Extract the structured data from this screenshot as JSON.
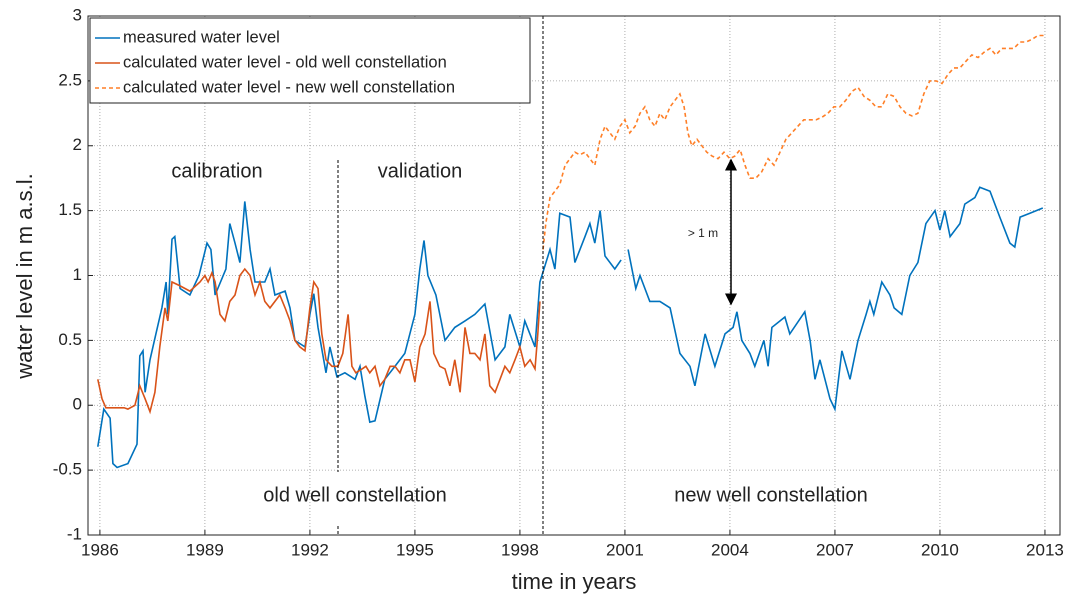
{
  "chart_data": {
    "type": "line",
    "x_label": "time in years",
    "y_label": "water level in m a.s.l.",
    "xlim": [
      1985.66,
      2013.43
    ],
    "ylim": [
      -1,
      3
    ],
    "xticks": [
      1986,
      1989,
      1992,
      1995,
      1998,
      2001,
      2004,
      2007,
      2010,
      2013
    ],
    "yticks": [
      -1,
      -0.5,
      0,
      0.5,
      1,
      1.5,
      2,
      2.5,
      3
    ],
    "grid": true,
    "legend": "upper left",
    "annotations": [
      "calibration",
      "validation",
      "old well constellation",
      "new well constellation",
      "> 1 m"
    ],
    "series": [
      {
        "name": "measured water level",
        "color": "#0072bd",
        "line_style": "solid",
        "x": [
          1985.94,
          1986.11,
          1986.29,
          1986.37,
          1986.49,
          1986.8,
          1987.06,
          1987.14,
          1987.23,
          1987.29,
          1987.43,
          1987.6,
          1987.77,
          1987.89,
          1987.94,
          1988.06,
          1988.14,
          1988.29,
          1988.57,
          1988.83,
          1989.06,
          1989.17,
          1989.29,
          1989.6,
          1989.71,
          1989.86,
          1990.0,
          1990.14,
          1990.29,
          1990.43,
          1990.71,
          1990.86,
          1991.0,
          1991.29,
          1991.43,
          1991.57,
          1991.86,
          1992.0,
          1992.11,
          1992.23,
          1992.46,
          1992.57,
          1992.77,
          1993.0,
          1993.29,
          1993.43,
          1993.57,
          1993.71,
          1993.86,
          1994.14,
          1994.43,
          1994.71,
          1995.0,
          1995.14,
          1995.26,
          1995.37,
          1995.6,
          1995.86,
          1996.14,
          1996.43,
          1996.71,
          1997.0,
          1997.29,
          1997.57,
          1997.71,
          1998.0,
          1998.14,
          1998.43,
          1998.57,
          1998.86,
          1999.0,
          1999.14,
          1999.43,
          1999.57,
          1999.86,
          2000.0,
          2000.14,
          2000.29,
          2000.43,
          2000.71,
          2000.89,
          null,
          2001.09,
          2001.31,
          2001.43,
          2001.71,
          2002.0,
          2002.29,
          2002.57,
          2002.86,
          2003.0,
          2003.29,
          2003.57,
          2003.86,
          2004.09,
          2004.2,
          2004.34,
          2004.57,
          2004.71,
          2004.97,
          2005.09,
          2005.2,
          2005.57,
          2005.71,
          2006.14,
          2006.29,
          2006.43,
          2006.57,
          2006.86,
          2007.0,
          2007.2,
          2007.43,
          2007.66,
          2007.89,
          2008.0,
          2008.11,
          2008.34,
          2008.57,
          2008.69,
          2008.91,
          2009.14,
          2009.37,
          2009.6,
          2009.86,
          2010.0,
          2010.14,
          2010.29,
          2010.57,
          2010.71,
          2011.0,
          2011.14,
          2011.43,
          2011.71,
          2012.0,
          2012.14,
          2012.29,
          2012.57,
          2012.94
        ],
        "values": [
          -0.32,
          -0.03,
          -0.1,
          -0.45,
          -0.48,
          -0.45,
          -0.3,
          0.38,
          0.42,
          0.1,
          0.35,
          0.55,
          0.75,
          0.95,
          0.7,
          1.28,
          1.3,
          0.9,
          0.85,
          1.0,
          1.25,
          1.2,
          0.85,
          1.05,
          1.4,
          1.25,
          1.1,
          1.57,
          1.2,
          0.95,
          0.95,
          1.05,
          0.85,
          0.88,
          0.75,
          0.5,
          0.45,
          0.7,
          0.86,
          0.6,
          0.25,
          0.45,
          0.22,
          0.25,
          0.2,
          0.3,
          0.07,
          -0.13,
          -0.12,
          0.2,
          0.3,
          0.4,
          0.7,
          1.05,
          1.27,
          1.0,
          0.85,
          0.5,
          0.6,
          0.65,
          0.7,
          0.78,
          0.35,
          0.45,
          0.7,
          0.45,
          0.65,
          0.45,
          0.95,
          1.2,
          1.05,
          1.48,
          1.45,
          1.1,
          1.3,
          1.4,
          1.25,
          1.5,
          1.15,
          1.05,
          1.12,
          null,
          1.2,
          0.9,
          1.0,
          0.8,
          0.8,
          0.75,
          0.4,
          0.3,
          0.15,
          0.55,
          0.3,
          0.55,
          0.6,
          0.72,
          0.5,
          0.4,
          0.3,
          0.5,
          0.3,
          0.6,
          0.68,
          0.55,
          0.72,
          0.5,
          0.2,
          0.35,
          0.05,
          -0.03,
          0.42,
          0.2,
          0.5,
          0.7,
          0.8,
          0.7,
          0.95,
          0.85,
          0.75,
          0.7,
          1.0,
          1.1,
          1.4,
          1.5,
          1.35,
          1.5,
          1.3,
          1.4,
          1.55,
          1.6,
          1.68,
          1.65,
          1.45,
          1.25,
          1.22,
          1.45,
          1.48,
          1.52
        ]
      },
      {
        "name": "calculated water level - old well constellation",
        "color": "#d95319",
        "line_style": "solid",
        "x": [
          1985.94,
          1986.06,
          1986.17,
          1986.34,
          1986.51,
          1986.69,
          1986.8,
          1987.0,
          1987.14,
          1987.29,
          1987.43,
          1987.57,
          1987.71,
          1987.86,
          1987.94,
          1988.06,
          1988.29,
          1988.57,
          1988.86,
          1989.0,
          1989.09,
          1989.2,
          1989.29,
          1989.43,
          1989.57,
          1989.71,
          1989.86,
          1990.0,
          1990.14,
          1990.29,
          1990.43,
          1990.57,
          1990.71,
          1990.86,
          1991.14,
          1991.29,
          1991.43,
          1991.57,
          1991.71,
          1991.86,
          1992.0,
          1992.11,
          1992.23,
          1992.34,
          1992.46,
          1992.63,
          1992.8,
          1992.94,
          1993.09,
          1993.2,
          1993.31,
          1993.49,
          1993.6,
          1993.71,
          1993.86,
          1994.0,
          1994.14,
          1994.29,
          1994.43,
          1994.57,
          1994.71,
          1994.86,
          1995.0,
          1995.14,
          1995.29,
          1995.43,
          1995.54,
          1995.71,
          1995.86,
          1996.0,
          1996.14,
          1996.29,
          1996.43,
          1996.57,
          1996.71,
          1996.86,
          1997.0,
          1997.14,
          1997.29,
          1997.43,
          1997.57,
          1997.71,
          1997.86,
          1998.0,
          1998.14,
          1998.29,
          1998.43,
          1998.51,
          1998.57
        ],
        "values": [
          0.2,
          0.05,
          -0.02,
          -0.02,
          -0.02,
          -0.02,
          -0.03,
          0.0,
          0.15,
          0.05,
          -0.05,
          0.1,
          0.45,
          0.75,
          0.65,
          0.95,
          0.92,
          0.88,
          0.95,
          1.0,
          0.95,
          1.02,
          0.95,
          0.7,
          0.65,
          0.8,
          0.85,
          1.0,
          1.05,
          1.0,
          0.85,
          0.95,
          0.8,
          0.75,
          0.85,
          0.75,
          0.65,
          0.5,
          0.45,
          0.42,
          0.75,
          0.95,
          0.9,
          0.55,
          0.35,
          0.3,
          0.3,
          0.4,
          0.7,
          0.3,
          0.25,
          0.28,
          0.3,
          0.25,
          0.3,
          0.15,
          0.2,
          0.3,
          0.3,
          0.25,
          0.35,
          0.35,
          0.18,
          0.45,
          0.55,
          0.8,
          0.4,
          0.3,
          0.28,
          0.15,
          0.35,
          0.1,
          0.6,
          0.4,
          0.4,
          0.35,
          0.55,
          0.15,
          0.1,
          0.2,
          0.3,
          0.25,
          0.35,
          0.45,
          0.3,
          0.35,
          0.28,
          0.55,
          0.8
        ]
      },
      {
        "name": "calculated water level - new well constellation",
        "color": "#ff7f27",
        "line_style": "dashed",
        "x": [
          1998.66,
          1998.74,
          1998.86,
          1999.0,
          1999.14,
          1999.29,
          1999.43,
          1999.57,
          1999.71,
          1999.86,
          2000.0,
          2000.14,
          2000.29,
          2000.43,
          2000.57,
          2000.71,
          2000.86,
          2001.0,
          2001.14,
          2001.29,
          2001.43,
          2001.57,
          2001.71,
          2001.86,
          2002.0,
          2002.14,
          2002.29,
          2002.43,
          2002.57,
          2002.69,
          2002.8,
          2002.91,
          2003.06,
          2003.2,
          2003.34,
          2003.49,
          2003.66,
          2003.83,
          2004.0,
          2004.14,
          2004.29,
          2004.43,
          2004.57,
          2004.74,
          2004.91,
          2005.09,
          2005.26,
          2005.43,
          2005.6,
          2005.77,
          2005.94,
          2006.11,
          2006.29,
          2006.46,
          2006.63,
          2006.8,
          2006.97,
          2007.14,
          2007.31,
          2007.49,
          2007.66,
          2007.83,
          2008.0,
          2008.17,
          2008.34,
          2008.51,
          2008.69,
          2008.86,
          2009.03,
          2009.2,
          2009.37,
          2009.54,
          2009.71,
          2009.89,
          2010.06,
          2010.23,
          2010.4,
          2010.57,
          2010.74,
          2010.91,
          2011.09,
          2011.26,
          2011.43,
          2011.6,
          2011.77,
          2011.94,
          2012.11,
          2012.29,
          2012.46,
          2012.63,
          2012.8,
          2013.0
        ],
        "values": [
          1.2,
          1.4,
          1.6,
          1.65,
          1.7,
          1.85,
          1.9,
          1.95,
          1.93,
          1.95,
          1.9,
          1.85,
          2.05,
          2.15,
          2.1,
          2.05,
          2.15,
          2.2,
          2.1,
          2.15,
          2.25,
          2.3,
          2.2,
          2.15,
          2.25,
          2.2,
          2.3,
          2.35,
          2.4,
          2.3,
          2.1,
          2.0,
          2.05,
          2.0,
          1.95,
          1.92,
          1.9,
          1.95,
          1.9,
          1.92,
          1.97,
          1.85,
          1.75,
          1.75,
          1.8,
          1.9,
          1.85,
          1.95,
          2.05,
          2.1,
          2.15,
          2.2,
          2.2,
          2.2,
          2.22,
          2.25,
          2.3,
          2.3,
          2.35,
          2.42,
          2.45,
          2.38,
          2.35,
          2.3,
          2.3,
          2.4,
          2.38,
          2.3,
          2.25,
          2.23,
          2.25,
          2.4,
          2.5,
          2.5,
          2.48,
          2.55,
          2.6,
          2.6,
          2.65,
          2.7,
          2.68,
          2.72,
          2.75,
          2.7,
          2.75,
          2.75,
          2.75,
          2.8,
          2.8,
          2.82,
          2.85,
          2.85
        ]
      }
    ]
  }
}
